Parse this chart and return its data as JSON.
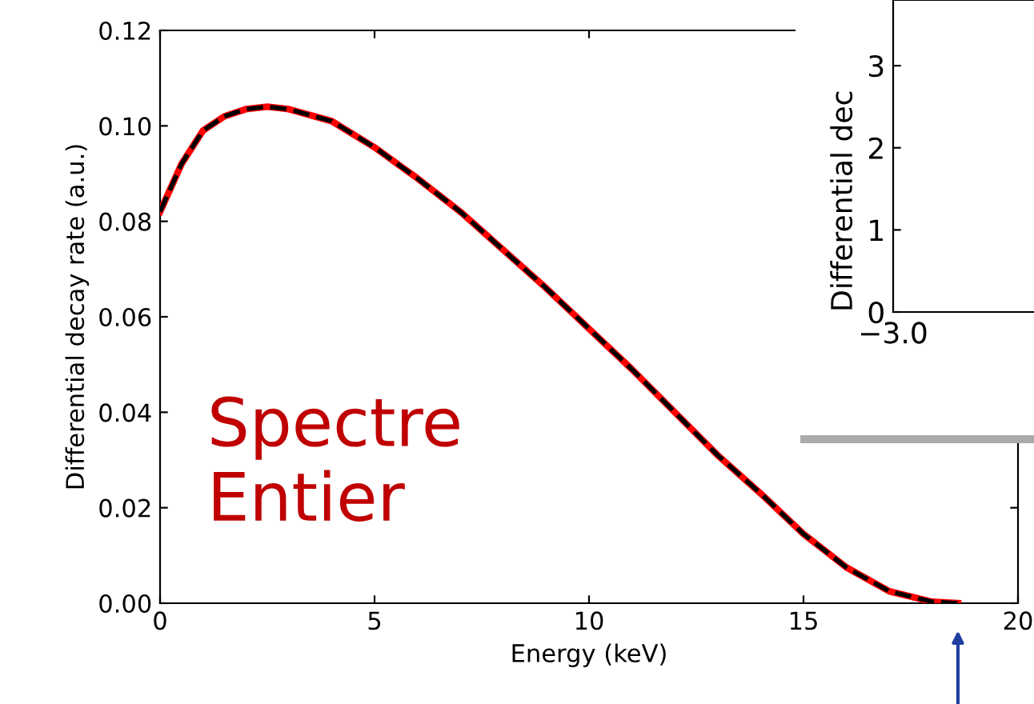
{
  "chart_data": [
    {
      "type": "line",
      "xlabel": "Energy (keV)",
      "ylabel": "Differential decay rate (a.u.)",
      "xlim": [
        0,
        20
      ],
      "xticks": [
        0,
        5,
        10,
        15,
        20
      ],
      "ylim": [
        0,
        0.12
      ],
      "yticks": [
        {
          "value": 0,
          "label": "0.00"
        },
        {
          "value": 0.02,
          "label": "0.02"
        },
        {
          "value": 0.04,
          "label": "0.04"
        },
        {
          "value": 0.06,
          "label": "0.06"
        },
        {
          "value": 0.08,
          "label": "0.08"
        },
        {
          "value": 0.1,
          "label": "0.10"
        },
        {
          "value": 0.12,
          "label": "0.12"
        }
      ],
      "grid": false,
      "legend": false,
      "x": [
        0,
        0.5,
        1,
        1.5,
        2,
        2.5,
        3,
        4,
        5,
        6,
        7,
        8,
        9,
        10,
        11,
        12,
        13,
        14,
        15,
        16,
        17,
        18,
        18.6
      ],
      "series": [
        {
          "color": "#ff0000",
          "line_style": "solid",
          "values": [
            0.082,
            0.092,
            0.099,
            0.102,
            0.1035,
            0.104,
            0.1035,
            0.101,
            0.0955,
            0.089,
            0.082,
            0.074,
            0.066,
            0.0575,
            0.049,
            0.04,
            0.031,
            0.023,
            0.0145,
            0.0075,
            0.0025,
            0.0003,
            0
          ]
        },
        {
          "color": "#000000",
          "line_style": "dashed",
          "values": [
            0.082,
            0.092,
            0.099,
            0.102,
            0.1035,
            0.104,
            0.1035,
            0.101,
            0.0955,
            0.089,
            0.082,
            0.074,
            0.066,
            0.0575,
            0.049,
            0.04,
            0.031,
            0.023,
            0.0145,
            0.0075,
            0.0025,
            0.0003,
            0
          ]
        }
      ],
      "annotations": [
        "Spectre\nEntier"
      ]
    },
    {
      "type": "line",
      "ylabel": "Differential dec",
      "ylim": [
        0,
        3.8
      ],
      "yticks": [
        0,
        1,
        2,
        3
      ],
      "categories": [
        null
      ],
      "annotations": [
        "−3.0"
      ]
    }
  ]
}
